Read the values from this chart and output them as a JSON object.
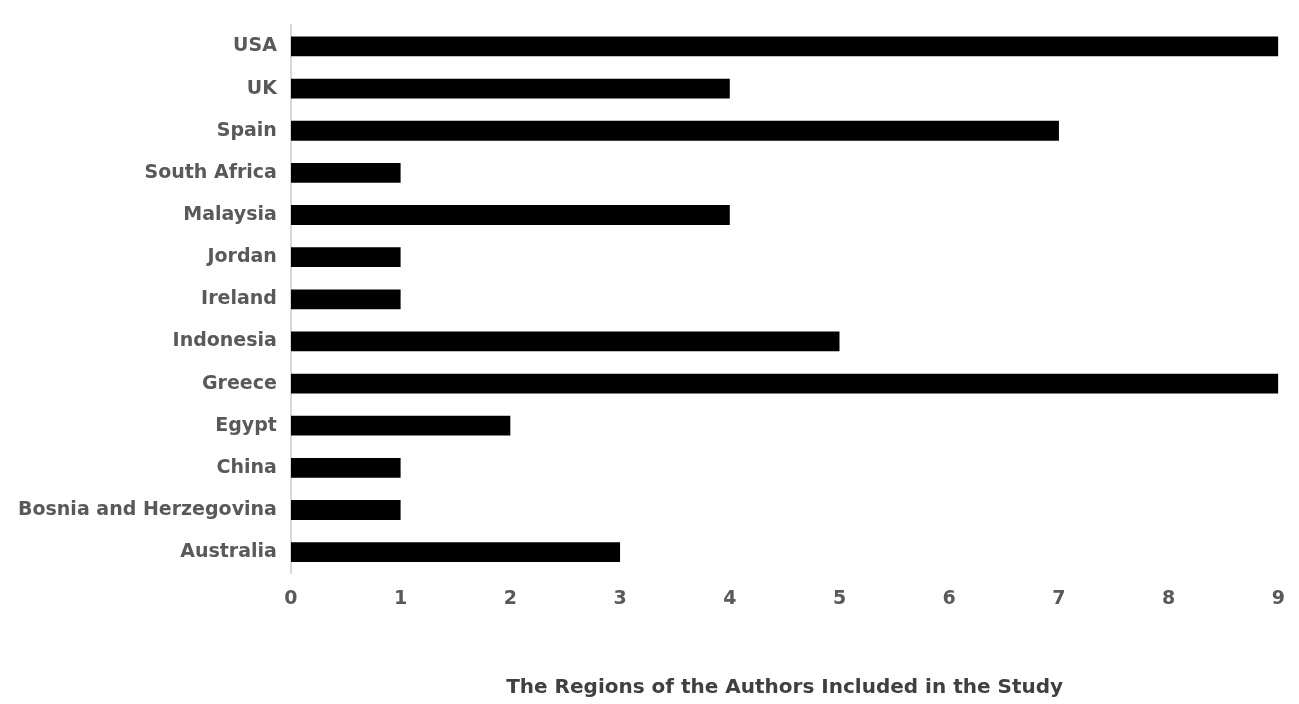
{
  "chart_data": {
    "type": "bar",
    "orientation": "horizontal",
    "xlabel": "The Regions of the Authors Included in the Study",
    "categories": [
      "USA",
      "UK",
      "Spain",
      "South Africa",
      "Malaysia",
      "Jordan",
      "Ireland",
      "Indonesia",
      "Greece",
      "Egypt",
      "China",
      "Bosnia and Herzegovina",
      "Australia"
    ],
    "values": [
      9,
      4,
      7,
      1,
      4,
      1,
      1,
      5,
      9,
      2,
      1,
      1,
      3
    ],
    "color": "#000000",
    "xlim": [
      0,
      9
    ],
    "xticks": [
      0,
      1,
      2,
      3,
      4,
      5,
      6,
      7,
      8,
      9
    ],
    "grid": false,
    "legend": false
  }
}
